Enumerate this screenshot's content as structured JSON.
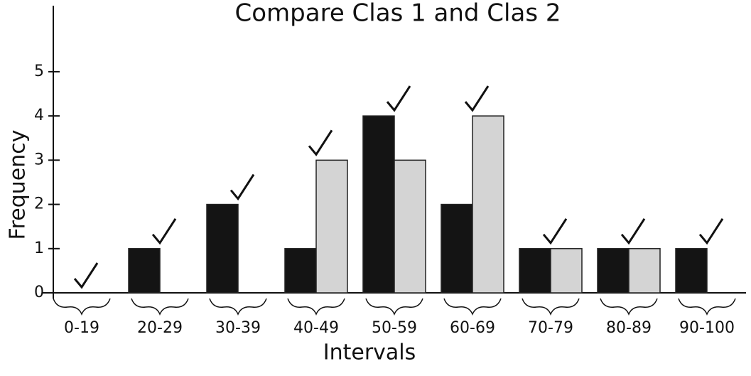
{
  "chart_data": {
    "type": "bar",
    "title": "Compare Clas 1 and Clas 2",
    "x_label": "Intervals",
    "y_label": "Frequency",
    "categories": [
      "0-19",
      "20-29",
      "30-39",
      "40-49",
      "50-59",
      "60-69",
      "70-79",
      "80-89",
      "90-100"
    ],
    "series": [
      {
        "color": "#141414",
        "values": [
          0,
          1,
          2,
          1,
          4,
          2,
          1,
          1,
          1
        ]
      },
      {
        "color": "#d4d4d4",
        "values": [
          0,
          0,
          0,
          3,
          3,
          4,
          1,
          1,
          0
        ]
      }
    ],
    "ylim": [
      0,
      6.3
    ],
    "yticks": [
      0,
      1,
      2,
      3,
      4,
      5
    ],
    "grid": false
  }
}
